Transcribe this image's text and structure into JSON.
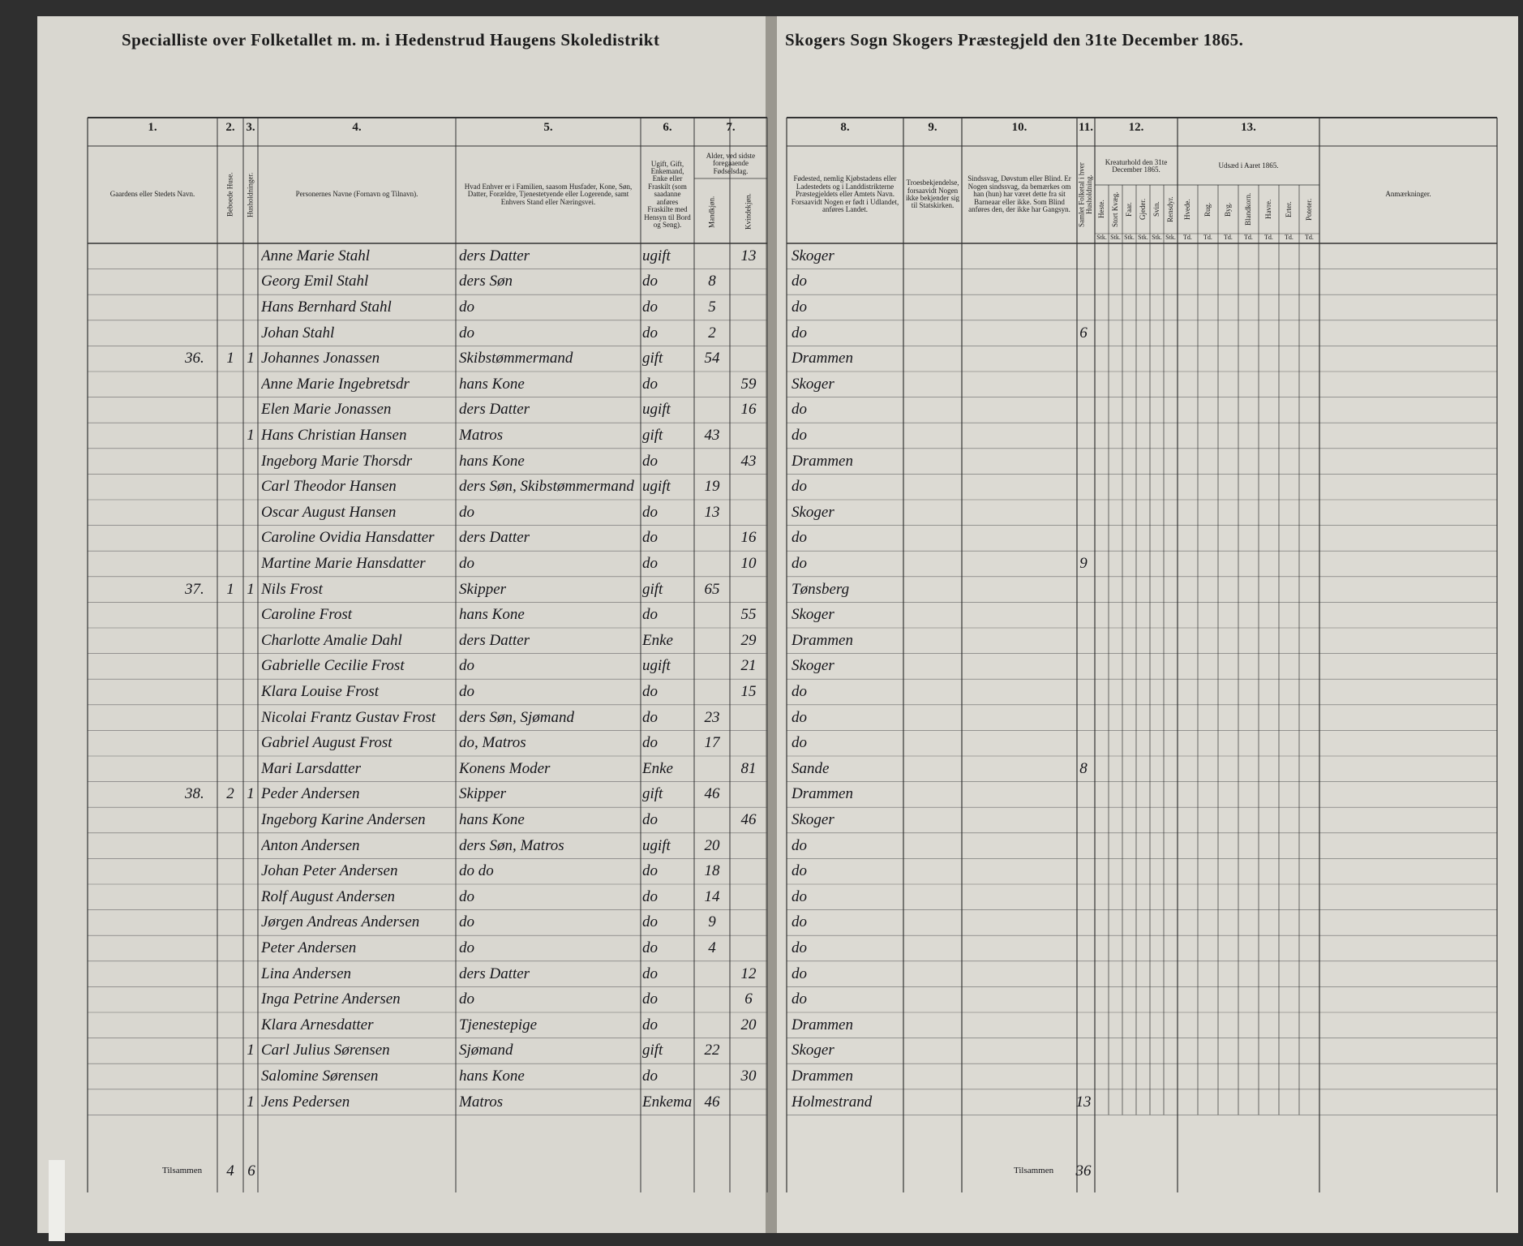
{
  "header": {
    "left_title": "Specialliste over Folketallet m. m. i Hedenstrud Haugens Skoledistrikt",
    "right_title": "Skogers Sogn Skogers Præstegjeld den 31te December 1865."
  },
  "columns_left": [
    {
      "number": "1.",
      "label": "Gaardens eller Stedets Navn."
    },
    {
      "number": "2.",
      "label": "Beboede Huse."
    },
    {
      "number": "3.",
      "label": "Husholdninger."
    },
    {
      "number": "4.",
      "label": "Personernes Navne (Fornavn og Tilnavn)."
    },
    {
      "number": "5.",
      "label": "Hvad Enhver er i Familien, saasom Husfader, Kone, Søn, Datter, Forældre, Tjenestetyende eller Logerende, samt Enhvers Stand eller Næringsvei."
    },
    {
      "number": "6.",
      "label": "Ugift, Gift, Enkemand, Enke eller Fraskilt (som saadanne anføres Fraskilte med Hensyn til Bord og Seng)."
    },
    {
      "number": "7.",
      "label": "Alder, ved sidste foregaaende Fødselsdag.",
      "subs": [
        "Mandkjøn.",
        "Kvindekjøn."
      ]
    }
  ],
  "columns_right": [
    {
      "number": "8.",
      "label": "Fødested, nemlig Kjøbstadens eller Ladestedets og i Landdistrikterne Præstegjeldets eller Amtets Navn. Forsaavidt Nogen er født i Udlandet, anføres Landet."
    },
    {
      "number": "9.",
      "label": "Troesbekjendelse, forsaavidt Nogen ikke bekjender sig til Statskirken."
    },
    {
      "number": "10.",
      "label": "Sindssvag, Døvstum eller Blind. Er Nogen sindssvag, da bemærkes om han (hun) har været dette fra sit Barneaar eller ikke. Som Blind anføres den, der ikke har Gangsyn."
    },
    {
      "number": "11.",
      "label": "Samlet Folketal i hver Husholdning."
    },
    {
      "number": "12.",
      "label": "Kreaturhold den 31te December 1865.",
      "subs": [
        "Heste.",
        "Stort Kvæg.",
        "Faar.",
        "Gjeder.",
        "Svin.",
        "Rensdyr."
      ],
      "unit": "Stk."
    },
    {
      "number": "13.",
      "label": "Udsæd i Aaret 1865.",
      "subs": [
        "Hvede.",
        "Rug.",
        "Byg.",
        "Blandkorn.",
        "Havre.",
        "Erter.",
        "Poteter."
      ],
      "unit": "Td."
    },
    {
      "label": "Anmærkninger."
    }
  ],
  "rows": [
    {
      "name": "Anne Marie Stahl",
      "position": "ders Datter",
      "marital": "ugift",
      "female": 13,
      "birthplace": "Skoger"
    },
    {
      "name": "Georg Emil Stahl",
      "position": "ders Søn",
      "marital": "do",
      "male": 8,
      "birthplace": "do"
    },
    {
      "name": "Hans Bernhard Stahl",
      "position": "do",
      "marital": "do",
      "male": 5,
      "birthplace": "do"
    },
    {
      "name": "Johan Stahl",
      "position": "do",
      "marital": "do",
      "male": 2,
      "birthplace": "do",
      "total": 6
    },
    {
      "farm": "36.",
      "houses": 1,
      "households": 1,
      "name": "Johannes Jonassen",
      "position": "Skibstømmermand",
      "marital": "gift",
      "male": 54,
      "birthplace": "Drammen"
    },
    {
      "name": "Anne Marie Ingebretsdr",
      "position": "hans Kone",
      "marital": "do",
      "female": 59,
      "birthplace": "Skoger"
    },
    {
      "name": "Elen Marie Jonassen",
      "position": "ders Datter",
      "marital": "ugift",
      "female": 16,
      "birthplace": "do"
    },
    {
      "households": 1,
      "name": "Hans Christian Hansen",
      "position": "Matros",
      "marital": "gift",
      "male": 43,
      "birthplace": "do"
    },
    {
      "name": "Ingeborg Marie Thorsdr",
      "position": "hans Kone",
      "marital": "do",
      "female": 43,
      "birthplace": "Drammen"
    },
    {
      "name": "Carl Theodor Hansen",
      "position": "ders Søn, Skibstømmermand",
      "marital": "ugift",
      "male": 19,
      "birthplace": "do"
    },
    {
      "name": "Oscar August Hansen",
      "position": "do",
      "marital": "do",
      "male": 13,
      "birthplace": "Skoger"
    },
    {
      "name": "Caroline Ovidia Hansdatter",
      "position": "ders Datter",
      "marital": "do",
      "female": 16,
      "birthplace": "do"
    },
    {
      "name": "Martine Marie Hansdatter",
      "position": "do",
      "marital": "do",
      "female": 10,
      "birthplace": "do",
      "total": 9
    },
    {
      "farm": "37.",
      "houses": 1,
      "households": 1,
      "name": "Nils Frost",
      "position": "Skipper",
      "marital": "gift",
      "male": 65,
      "birthplace": "Tønsberg"
    },
    {
      "name": "Caroline Frost",
      "position": "hans Kone",
      "marital": "do",
      "female": 55,
      "birthplace": "Skoger"
    },
    {
      "name": "Charlotte Amalie Dahl",
      "position": "ders Datter",
      "marital": "Enke",
      "female": 29,
      "birthplace": "Drammen"
    },
    {
      "name": "Gabrielle Cecilie Frost",
      "position": "do",
      "marital": "ugift",
      "female": 21,
      "birthplace": "Skoger"
    },
    {
      "name": "Klara Louise Frost",
      "position": "do",
      "marital": "do",
      "female": 15,
      "birthplace": "do"
    },
    {
      "name": "Nicolai Frantz Gustav Frost",
      "position": "ders Søn, Sjømand",
      "marital": "do",
      "male": 23,
      "birthplace": "do"
    },
    {
      "name": "Gabriel August Frost",
      "position": "do, Matros",
      "marital": "do",
      "male": 17,
      "birthplace": "do"
    },
    {
      "name": "Mari Larsdatter",
      "position": "Konens Moder",
      "marital": "Enke",
      "female": 81,
      "birthplace": "Sande",
      "total": 8
    },
    {
      "farm": "38.",
      "houses": 2,
      "households": 1,
      "name": "Peder Andersen",
      "position": "Skipper",
      "marital": "gift",
      "male": 46,
      "birthplace": "Drammen"
    },
    {
      "name": "Ingeborg Karine Andersen",
      "position": "hans Kone",
      "marital": "do",
      "female": 46,
      "birthplace": "Skoger"
    },
    {
      "name": "Anton Andersen",
      "position": "ders Søn, Matros",
      "marital": "ugift",
      "male": 20,
      "birthplace": "do"
    },
    {
      "name": "Johan Peter Andersen",
      "position": "do do",
      "marital": "do",
      "male": 18,
      "birthplace": "do"
    },
    {
      "name": "Rolf August Andersen",
      "position": "do",
      "marital": "do",
      "male": 14,
      "birthplace": "do"
    },
    {
      "name": "Jørgen Andreas Andersen",
      "position": "do",
      "marital": "do",
      "male": 9,
      "birthplace": "do"
    },
    {
      "name": "Peter Andersen",
      "position": "do",
      "marital": "do",
      "male": 4,
      "birthplace": "do"
    },
    {
      "name": "Lina Andersen",
      "position": "ders Datter",
      "marital": "do",
      "female": 12,
      "birthplace": "do"
    },
    {
      "name": "Inga Petrine Andersen",
      "position": "do",
      "marital": "do",
      "female": 6,
      "birthplace": "do"
    },
    {
      "name": "Klara Arnesdatter",
      "position": "Tjenestepige",
      "marital": "do",
      "female": 20,
      "birthplace": "Drammen"
    },
    {
      "households": 1,
      "name": "Carl Julius Sørensen",
      "position": "Sjømand",
      "marital": "gift",
      "male": 22,
      "birthplace": "Skoger"
    },
    {
      "name": "Salomine Sørensen",
      "position": "hans Kone",
      "marital": "do",
      "female": 30,
      "birthplace": "Drammen"
    },
    {
      "households": 1,
      "name": "Jens Pedersen",
      "position": "Matros",
      "marital": "Enkemand",
      "male": 46,
      "birthplace": "Holmestrand",
      "total": 13
    }
  ],
  "totals_left": {
    "label": "Tilsammen",
    "houses": 4,
    "households": 6
  },
  "totals_right": {
    "label": "Tilsammen",
    "total": 36
  }
}
